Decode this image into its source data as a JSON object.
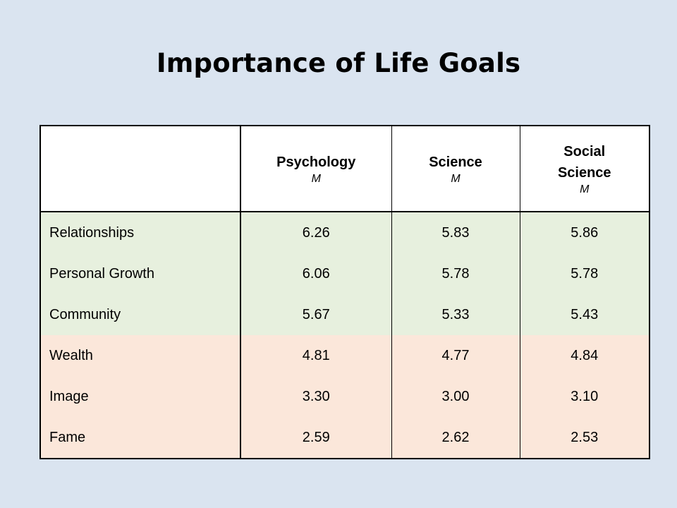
{
  "title": "Importance of Life Goals",
  "table": {
    "columns": [
      {
        "label": "Psychology",
        "sub": "M"
      },
      {
        "label": "Science",
        "sub": "M"
      },
      {
        "label": "Social Science",
        "sub": "M"
      }
    ],
    "rows": [
      {
        "label": "Relationships",
        "values": [
          "6.26",
          "5.83",
          "5.86"
        ],
        "group": "positive"
      },
      {
        "label": "Personal Growth",
        "values": [
          "6.06",
          "5.78",
          "5.78"
        ],
        "group": "positive"
      },
      {
        "label": "Community",
        "values": [
          "5.67",
          "5.33",
          "5.43"
        ],
        "group": "positive"
      },
      {
        "label": "Wealth",
        "values": [
          "4.81",
          "4.77",
          "4.84"
        ],
        "group": "negative"
      },
      {
        "label": "Image",
        "values": [
          "3.30",
          "3.00",
          "3.10"
        ],
        "group": "negative"
      },
      {
        "label": "Fame",
        "values": [
          "2.59",
          "2.62",
          "2.53"
        ],
        "group": "negative"
      }
    ]
  },
  "colors": {
    "background": "#dae4f0",
    "positive_rows": "#e7f0de",
    "negative_rows": "#fbe7da"
  }
}
